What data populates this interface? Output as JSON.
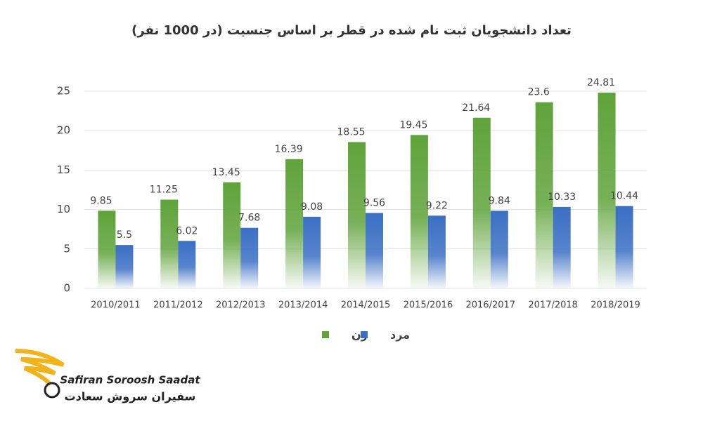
{
  "chart_data": {
    "type": "bar",
    "title": "تعداد دانشجویان ثبت نام شده در قطر بر اساس جنسیت (در 1000 نفر)",
    "categories": [
      "2010/2011",
      "2011/2012",
      "2012/2013",
      "2013/2014",
      "2014/2015",
      "2015/2016",
      "2016/2017",
      "2017/2018",
      "2018/2019"
    ],
    "series": [
      {
        "name": "زن",
        "color": "#5fa33a",
        "values": [
          9.85,
          11.25,
          13.45,
          16.39,
          18.55,
          19.45,
          21.64,
          23.6,
          24.81
        ]
      },
      {
        "name": "مرد",
        "color": "#3a6fc4",
        "values": [
          5.5,
          6.02,
          7.68,
          9.08,
          9.56,
          9.22,
          9.84,
          10.33,
          10.44
        ]
      }
    ],
    "ylim": [
      0,
      25
    ],
    "yticks": [
      0,
      5,
      10,
      15,
      20,
      25
    ],
    "grid": true,
    "legend": "bottom"
  },
  "logo": {
    "name": "Safiran Soroosh Saadat",
    "name_fa": "سفیران سروش سعادت"
  }
}
